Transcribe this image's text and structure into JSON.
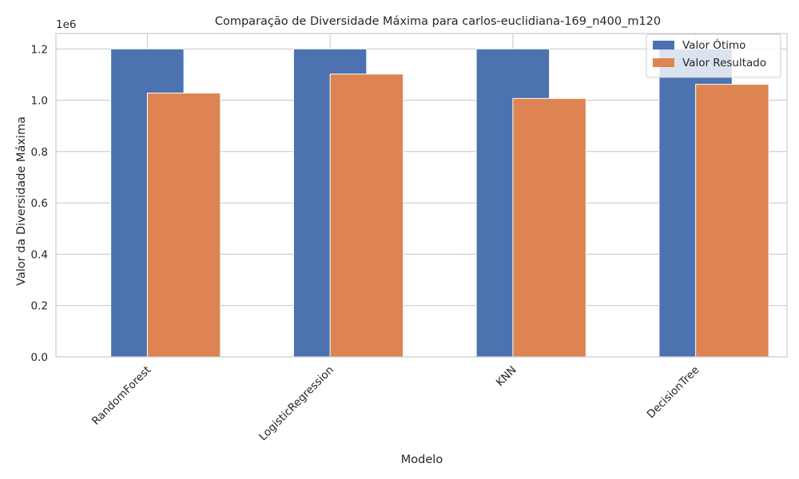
{
  "chart_data": {
    "type": "bar",
    "title": "Comparação de Diversidade Máxima para carlos-euclidiana-169_n400_m120",
    "xlabel": "Modelo",
    "ylabel": "Valor da Diversidade Máxima",
    "scale_label": "1e6",
    "categories": [
      "RandomForest",
      "LogisticRegression",
      "KNN",
      "DecisionTree"
    ],
    "series": [
      {
        "name": "Valor Ótimo",
        "color": "#4c72b0",
        "values": [
          1200000,
          1200000,
          1200000,
          1200000
        ]
      },
      {
        "name": "Valor Resultado",
        "color": "#dd8452",
        "values": [
          1028000,
          1102000,
          1007000,
          1062000
        ]
      }
    ],
    "ylim": [
      0,
      1260000
    ],
    "yticks": [
      0,
      200000,
      400000,
      600000,
      800000,
      1000000,
      1200000
    ],
    "ytick_labels": [
      "0.0",
      "0.2",
      "0.4",
      "0.6",
      "0.8",
      "1.0",
      "1.2"
    ],
    "grid": true,
    "legend_position": "top-right"
  }
}
